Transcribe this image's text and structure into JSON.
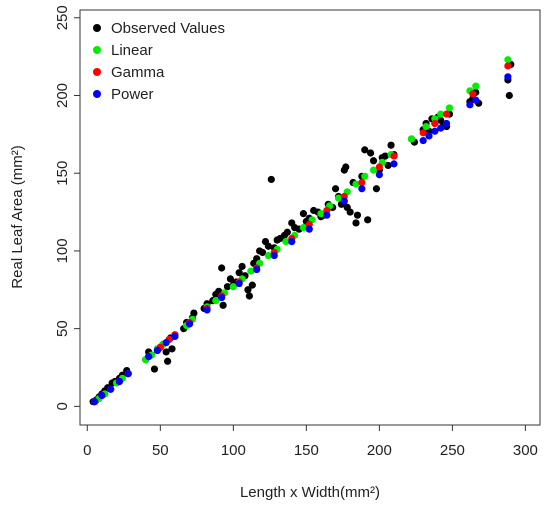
{
  "chart_data": {
    "type": "scatter",
    "title": "",
    "xlabel": "Length x Width(mm²)",
    "ylabel": "Real Leaf Area (mm²)",
    "xlim": [
      -5,
      310
    ],
    "ylim": [
      -12,
      255
    ],
    "xticks": [
      0,
      50,
      100,
      150,
      200,
      250,
      300
    ],
    "yticks": [
      0,
      50,
      100,
      150,
      200,
      250
    ],
    "grid": false,
    "legend_position": "top-left",
    "series": [
      {
        "name": "Observed Values",
        "color": "#000000",
        "points": [
          [
            4,
            3
          ],
          [
            6,
            4
          ],
          [
            8,
            6
          ],
          [
            10,
            8
          ],
          [
            12,
            10
          ],
          [
            14,
            12
          ],
          [
            17,
            15
          ],
          [
            19,
            16
          ],
          [
            22,
            18
          ],
          [
            24,
            20
          ],
          [
            27,
            23
          ],
          [
            40,
            30
          ],
          [
            42,
            35
          ],
          [
            44,
            33
          ],
          [
            46,
            24
          ],
          [
            48,
            36
          ],
          [
            50,
            38
          ],
          [
            52,
            40
          ],
          [
            54,
            35
          ],
          [
            55,
            29
          ],
          [
            57,
            44
          ],
          [
            58,
            37
          ],
          [
            60,
            46
          ],
          [
            66,
            50
          ],
          [
            68,
            54
          ],
          [
            72,
            57
          ],
          [
            73,
            60
          ],
          [
            80,
            63
          ],
          [
            82,
            66
          ],
          [
            86,
            68
          ],
          [
            88,
            72
          ],
          [
            90,
            74
          ],
          [
            92,
            89
          ],
          [
            93,
            65
          ],
          [
            96,
            77
          ],
          [
            98,
            82
          ],
          [
            100,
            78
          ],
          [
            102,
            80
          ],
          [
            104,
            86
          ],
          [
            106,
            90
          ],
          [
            108,
            84
          ],
          [
            110,
            75
          ],
          [
            111,
            71
          ],
          [
            113,
            78
          ],
          [
            114,
            92
          ],
          [
            116,
            95
          ],
          [
            118,
            100
          ],
          [
            120,
            99
          ],
          [
            122,
            106
          ],
          [
            124,
            103
          ],
          [
            126,
            146
          ],
          [
            128,
            102
          ],
          [
            130,
            107
          ],
          [
            132,
            108
          ],
          [
            135,
            110
          ],
          [
            137,
            112
          ],
          [
            140,
            118
          ],
          [
            142,
            115
          ],
          [
            145,
            114
          ],
          [
            148,
            124
          ],
          [
            150,
            119
          ],
          [
            152,
            121
          ],
          [
            155,
            126
          ],
          [
            158,
            125
          ],
          [
            160,
            122
          ],
          [
            162,
            123
          ],
          [
            165,
            130
          ],
          [
            168,
            128
          ],
          [
            170,
            140
          ],
          [
            172,
            135
          ],
          [
            174,
            130
          ],
          [
            176,
            152
          ],
          [
            177,
            154
          ],
          [
            178,
            128
          ],
          [
            180,
            125
          ],
          [
            182,
            144
          ],
          [
            184,
            118
          ],
          [
            185,
            123
          ],
          [
            188,
            148
          ],
          [
            190,
            165
          ],
          [
            192,
            120
          ],
          [
            194,
            163
          ],
          [
            196,
            158
          ],
          [
            198,
            140
          ],
          [
            200,
            152
          ],
          [
            202,
            160
          ],
          [
            204,
            161
          ],
          [
            206,
            155
          ],
          [
            208,
            168
          ],
          [
            210,
            162
          ],
          [
            222,
            172
          ],
          [
            224,
            170
          ],
          [
            230,
            178
          ],
          [
            232,
            182
          ],
          [
            234,
            177
          ],
          [
            236,
            185
          ],
          [
            238,
            182
          ],
          [
            240,
            186
          ],
          [
            242,
            184
          ],
          [
            244,
            181
          ],
          [
            246,
            180
          ],
          [
            248,
            188
          ],
          [
            262,
            196
          ],
          [
            264,
            198
          ],
          [
            266,
            202
          ],
          [
            268,
            195
          ],
          [
            288,
            210
          ],
          [
            289,
            200
          ],
          [
            290,
            220
          ]
        ]
      },
      {
        "name": "Linear",
        "color": "#00ee00",
        "points": [
          [
            5,
            3
          ],
          [
            8,
            5
          ],
          [
            12,
            8
          ],
          [
            16,
            11
          ],
          [
            20,
            15
          ],
          [
            24,
            18
          ],
          [
            28,
            21
          ],
          [
            40,
            30
          ],
          [
            44,
            33
          ],
          [
            48,
            37
          ],
          [
            52,
            40
          ],
          [
            56,
            43
          ],
          [
            60,
            46
          ],
          [
            68,
            52
          ],
          [
            72,
            56
          ],
          [
            82,
            64
          ],
          [
            88,
            68
          ],
          [
            94,
            73
          ],
          [
            100,
            77
          ],
          [
            106,
            82
          ],
          [
            112,
            87
          ],
          [
            118,
            92
          ],
          [
            124,
            97
          ],
          [
            130,
            101
          ],
          [
            136,
            106
          ],
          [
            142,
            110
          ],
          [
            148,
            115
          ],
          [
            154,
            120
          ],
          [
            160,
            124
          ],
          [
            166,
            129
          ],
          [
            172,
            134
          ],
          [
            178,
            138
          ],
          [
            184,
            143
          ],
          [
            190,
            148
          ],
          [
            196,
            152
          ],
          [
            202,
            157
          ],
          [
            208,
            162
          ],
          [
            222,
            172
          ],
          [
            232,
            180
          ],
          [
            238,
            185
          ],
          [
            242,
            188
          ],
          [
            248,
            192
          ],
          [
            262,
            203
          ],
          [
            266,
            206
          ],
          [
            288,
            223
          ]
        ]
      },
      {
        "name": "Gamma",
        "color": "#ff0000",
        "points": [
          [
            5,
            3
          ],
          [
            10,
            7
          ],
          [
            16,
            11
          ],
          [
            22,
            16
          ],
          [
            28,
            21
          ],
          [
            42,
            32
          ],
          [
            50,
            38
          ],
          [
            56,
            43
          ],
          [
            60,
            46
          ],
          [
            70,
            54
          ],
          [
            82,
            63
          ],
          [
            92,
            71
          ],
          [
            104,
            80
          ],
          [
            116,
            89
          ],
          [
            128,
            99
          ],
          [
            140,
            108
          ],
          [
            152,
            117
          ],
          [
            164,
            126
          ],
          [
            176,
            135
          ],
          [
            188,
            144
          ],
          [
            200,
            154
          ],
          [
            210,
            161
          ],
          [
            230,
            176
          ],
          [
            238,
            182
          ],
          [
            246,
            188
          ],
          [
            264,
            201
          ],
          [
            288,
            219
          ]
        ]
      },
      {
        "name": "Power",
        "color": "#0000ff",
        "points": [
          [
            5,
            3
          ],
          [
            10,
            7
          ],
          [
            16,
            11
          ],
          [
            22,
            16
          ],
          [
            28,
            21
          ],
          [
            42,
            32
          ],
          [
            48,
            36
          ],
          [
            54,
            41
          ],
          [
            60,
            45
          ],
          [
            70,
            53
          ],
          [
            82,
            62
          ],
          [
            92,
            70
          ],
          [
            104,
            79
          ],
          [
            116,
            88
          ],
          [
            128,
            97
          ],
          [
            140,
            106
          ],
          [
            152,
            114
          ],
          [
            164,
            123
          ],
          [
            176,
            132
          ],
          [
            188,
            140
          ],
          [
            200,
            149
          ],
          [
            210,
            156
          ],
          [
            230,
            171
          ],
          [
            234,
            174
          ],
          [
            238,
            177
          ],
          [
            242,
            179
          ],
          [
            246,
            182
          ],
          [
            262,
            194
          ],
          [
            266,
            197
          ],
          [
            288,
            212
          ]
        ]
      }
    ]
  }
}
